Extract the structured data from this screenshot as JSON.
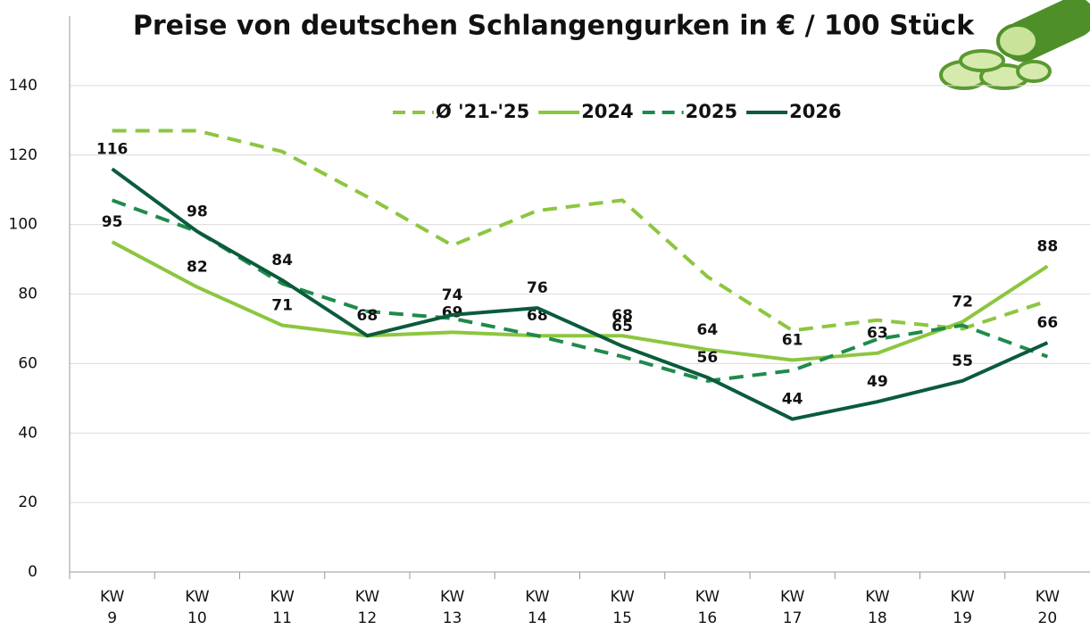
{
  "chart_data": {
    "type": "line",
    "title": "Preise von deutschen Schlangengurken in € / 100 Stück",
    "categories": [
      "KW 9",
      "KW 10",
      "KW 11",
      "KW 12",
      "KW 13",
      "KW 14",
      "KW 15",
      "KW 16",
      "KW 17",
      "KW 18",
      "KW 19",
      "KW 20"
    ],
    "series": [
      {
        "name": "Ø '21-'25",
        "color": "#8cc63f",
        "dashed": true,
        "values": [
          127,
          127,
          121,
          108,
          94,
          104,
          107,
          85,
          69.5,
          72.5,
          70,
          78
        ]
      },
      {
        "name": "2024",
        "color": "#8cc63f",
        "dashed": false,
        "values": [
          95,
          82,
          71,
          68,
          69,
          68,
          68,
          64,
          61,
          63,
          72,
          88
        ],
        "value_labels": [
          "95",
          "82",
          "71",
          null,
          "69",
          "68",
          "68",
          "64",
          "61",
          "63",
          "72",
          "88"
        ]
      },
      {
        "name": "2025",
        "color": "#1f8a4c",
        "dashed": true,
        "values": [
          107,
          98,
          83,
          75,
          73,
          68,
          62,
          55,
          58,
          67,
          71,
          62
        ]
      },
      {
        "name": "2026",
        "color": "#0b5b3c",
        "dashed": false,
        "values": [
          116,
          98,
          84,
          68,
          74,
          76,
          65,
          56,
          44,
          49,
          55,
          66
        ],
        "value_labels": [
          "116",
          "98",
          "84",
          "68",
          "74",
          "76",
          "65",
          "56",
          "44",
          "49",
          "55",
          "66"
        ]
      }
    ],
    "ylim": [
      0,
      160
    ],
    "yticks": [
      0,
      20,
      40,
      60,
      80,
      100,
      120,
      140
    ],
    "grid": true,
    "legend": "top"
  }
}
